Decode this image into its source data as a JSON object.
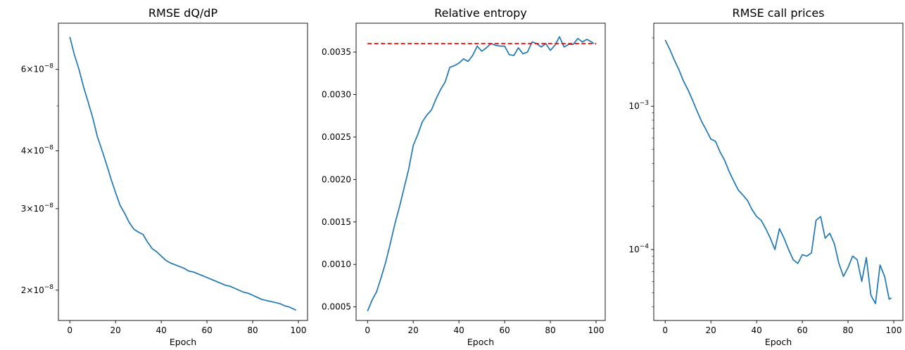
{
  "chart_data": [
    {
      "type": "line",
      "title": "RMSE dQ/dP",
      "xlabel": "Epoch",
      "ylabel": "",
      "yscale": "log",
      "xlim": [
        -5,
        104
      ],
      "ylim": [
        1.72e-08,
        7.55e-08
      ],
      "xticks": [
        0,
        20,
        40,
        60,
        80,
        100
      ],
      "yticks": [
        {
          "value": 6e-08,
          "mant": "6",
          "exp": "−8"
        },
        {
          "value": 4e-08,
          "mant": "4",
          "exp": "−8"
        },
        {
          "value": 3e-08,
          "mant": "3",
          "exp": "−8"
        },
        {
          "value": 2e-08,
          "mant": "2",
          "exp": "−8"
        }
      ],
      "minor_ticks": [
        5e-08
      ],
      "series": [
        {
          "color": "#1f77b4",
          "x": [
            0,
            2,
            4,
            6,
            8,
            10,
            12,
            14,
            16,
            18,
            20,
            22,
            24,
            26,
            28,
            30,
            32,
            34,
            36,
            38,
            40,
            42,
            44,
            46,
            48,
            50,
            52,
            54,
            56,
            58,
            60,
            62,
            64,
            66,
            68,
            70,
            72,
            74,
            76,
            78,
            80,
            82,
            84,
            86,
            88,
            90,
            92,
            94,
            96,
            98,
            99
          ],
          "y": [
            7.05e-08,
            6.45e-08,
            6e-08,
            5.5e-08,
            5.1e-08,
            4.72e-08,
            4.3e-08,
            4.02e-08,
            3.75e-08,
            3.48e-08,
            3.25e-08,
            3.05e-08,
            2.93e-08,
            2.8e-08,
            2.71e-08,
            2.67e-08,
            2.64e-08,
            2.54e-08,
            2.46e-08,
            2.42e-08,
            2.37e-08,
            2.32e-08,
            2.29e-08,
            2.27e-08,
            2.25e-08,
            2.23e-08,
            2.2e-08,
            2.19e-08,
            2.17e-08,
            2.15e-08,
            2.13e-08,
            2.11e-08,
            2.09e-08,
            2.07e-08,
            2.05e-08,
            2.04e-08,
            2.02e-08,
            2e-08,
            1.98e-08,
            1.97e-08,
            1.95e-08,
            1.93e-08,
            1.91e-08,
            1.9e-08,
            1.89e-08,
            1.88e-08,
            1.87e-08,
            1.85e-08,
            1.84e-08,
            1.82e-08,
            1.81e-08
          ]
        }
      ]
    },
    {
      "type": "line",
      "title": "Relative entropy",
      "xlabel": "Epoch",
      "ylabel": "",
      "yscale": "linear",
      "xlim": [
        -5,
        104
      ],
      "ylim": [
        0.00034,
        0.00384
      ],
      "xticks": [
        0,
        20,
        40,
        60,
        80,
        100
      ],
      "yticks": [
        0.0005,
        0.001,
        0.0015,
        0.002,
        0.0025,
        0.003,
        0.0035
      ],
      "ytick_labels": [
        "0.0005",
        "0.0010",
        "0.0015",
        "0.0020",
        "0.0025",
        "0.0030",
        "0.0035"
      ],
      "series": [
        {
          "color": "#1f77b4",
          "x": [
            0,
            2,
            4,
            6,
            8,
            10,
            12,
            14,
            16,
            18,
            20,
            22,
            24,
            26,
            28,
            30,
            32,
            34,
            36,
            38,
            40,
            42,
            44,
            46,
            48,
            50,
            52,
            54,
            56,
            58,
            60,
            62,
            64,
            66,
            68,
            70,
            72,
            74,
            76,
            78,
            80,
            82,
            84,
            86,
            88,
            90,
            92,
            94,
            96,
            98,
            99
          ],
          "y": [
            0.00045,
            0.00058,
            0.00068,
            0.00085,
            0.00103,
            0.00125,
            0.00148,
            0.00168,
            0.0019,
            0.00212,
            0.0024,
            0.00253,
            0.00268,
            0.00276,
            0.00282,
            0.00295,
            0.00306,
            0.00315,
            0.00332,
            0.00334,
            0.00337,
            0.00342,
            0.00339,
            0.00346,
            0.00357,
            0.00351,
            0.00355,
            0.0036,
            0.00358,
            0.00357,
            0.00357,
            0.00347,
            0.00346,
            0.00355,
            0.00348,
            0.0035,
            0.00362,
            0.0036,
            0.00356,
            0.0036,
            0.00352,
            0.00358,
            0.00368,
            0.00356,
            0.00359,
            0.00359,
            0.00366,
            0.00362,
            0.00365,
            0.00362,
            0.0036
          ]
        },
        {
          "color": "#ff0000",
          "style": "dashed",
          "x": [
            0,
            100
          ],
          "y": [
            0.0036,
            0.0036
          ]
        }
      ]
    },
    {
      "type": "line",
      "title": "RMSE call prices",
      "xlabel": "Epoch",
      "ylabel": "",
      "yscale": "log",
      "xlim": [
        -5,
        104
      ],
      "ylim": [
        3.2e-05,
        0.0038
      ],
      "xticks": [
        0,
        20,
        40,
        60,
        80,
        100
      ],
      "yticks": [
        {
          "value": 0.001,
          "mant": "10",
          "exp": "−3"
        },
        {
          "value": 0.0001,
          "mant": "10",
          "exp": "−4"
        }
      ],
      "series": [
        {
          "color": "#1f77b4",
          "x": [
            0,
            2,
            4,
            6,
            8,
            10,
            12,
            14,
            16,
            18,
            20,
            22,
            24,
            26,
            28,
            30,
            32,
            34,
            36,
            38,
            40,
            42,
            44,
            46,
            48,
            50,
            52,
            54,
            56,
            58,
            60,
            62,
            64,
            66,
            68,
            70,
            72,
            74,
            76,
            78,
            80,
            82,
            84,
            86,
            88,
            90,
            92,
            94,
            96,
            98,
            99
          ],
          "y": [
            0.0029,
            0.0025,
            0.0021,
            0.0018,
            0.0015,
            0.0013,
            0.0011,
            0.00092,
            0.00078,
            0.00068,
            0.00059,
            0.00057,
            0.00048,
            0.00042,
            0.00035,
            0.0003,
            0.00026,
            0.00024,
            0.00022,
            0.00019,
            0.00017,
            0.00016,
            0.00014,
            0.00012,
            0.0001,
            0.00014,
            0.00012,
            0.0001,
            8.5e-05,
            8e-05,
            9.2e-05,
            9e-05,
            9.5e-05,
            0.00016,
            0.00017,
            0.00012,
            0.00013,
            0.00011,
            8e-05,
            6.5e-05,
            7.5e-05,
            9e-05,
            8.5e-05,
            6e-05,
            8.8e-05,
            4.8e-05,
            4.2e-05,
            7.8e-05,
            6.5e-05,
            4.5e-05,
            4.6e-05
          ]
        }
      ]
    }
  ]
}
